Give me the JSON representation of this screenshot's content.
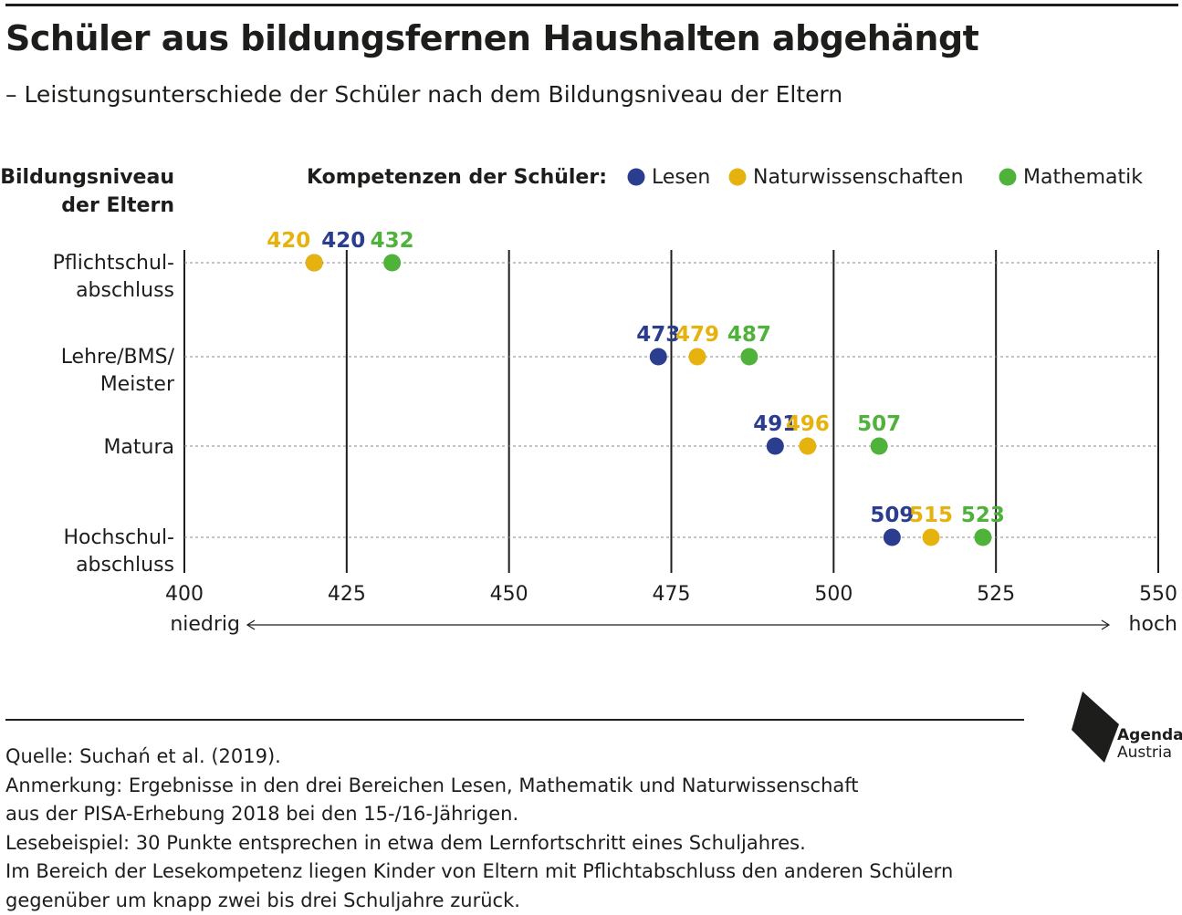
{
  "header": {
    "title": "Schüler aus bildungsfernen Haushalten abgehängt",
    "subtitle": "– Leistungsunterschiede der Schüler nach dem Bildungsniveau der Eltern"
  },
  "chart_data": {
    "type": "scatter",
    "y_axis_title": [
      "Bildungsniveau",
      "der Eltern"
    ],
    "legend_title": "Kompetenzen der Schüler:",
    "legend_position": "top",
    "categories": [
      [
        "Pflichtschul-",
        "abschluss"
      ],
      [
        "Lehre/BMS/",
        "Meister"
      ],
      [
        "Matura"
      ],
      [
        "Hochschul-",
        "abschluss"
      ]
    ],
    "series": [
      {
        "name": "Lesen",
        "color": "#2a3d8f",
        "values": [
          420,
          473,
          491,
          509
        ]
      },
      {
        "name": "Naturwissenschaften",
        "color": "#e6b20e",
        "values": [
          420,
          479,
          496,
          515
        ]
      },
      {
        "name": "Mathematik",
        "color": "#4fb23b",
        "values": [
          432,
          487,
          507,
          523
        ]
      }
    ],
    "data_labels": [
      [
        {
          "text": "420",
          "series": 1,
          "anchor": "end"
        },
        {
          "text": "420",
          "series": 0,
          "anchor": "start"
        },
        {
          "text": "432",
          "series": 2,
          "anchor": "middle"
        }
      ],
      [
        {
          "text": "473",
          "series": 0,
          "anchor": "middle"
        },
        {
          "text": "479",
          "series": 1,
          "anchor": "middle"
        },
        {
          "text": "487",
          "series": 2,
          "anchor": "middle"
        }
      ],
      [
        {
          "text": "491",
          "series": 0,
          "anchor": "middle"
        },
        {
          "text": "496",
          "series": 1,
          "anchor": "middle"
        },
        {
          "text": "507",
          "series": 2,
          "anchor": "middle"
        }
      ],
      [
        {
          "text": "509",
          "series": 0,
          "anchor": "middle"
        },
        {
          "text": "515",
          "series": 1,
          "anchor": "middle"
        },
        {
          "text": "523",
          "series": 2,
          "anchor": "middle"
        }
      ]
    ],
    "xlim": [
      400,
      550
    ],
    "x_ticks": [
      400,
      425,
      450,
      475,
      500,
      525,
      550
    ],
    "x_low_label": "niedrig",
    "x_high_label": "hoch",
    "grid": true
  },
  "footer": {
    "lines": [
      "Quelle: Suchań et al. (2019).",
      "Anmerkung: Ergebnisse in den drei Bereichen Lesen, Mathematik und Naturwissenschaft",
      "aus der PISA-Erhebung 2018 bei den 15-/16-Jährigen.",
      "Lesebeispiel: 30 Punkte entsprechen in etwa dem Lernfortschritt eines Schuljahres.",
      "Im Bereich der Lesekompetenz liegen Kinder von Eltern mit Pflichtabschluss den anderen Schülern",
      "gegenüber um knapp zwei bis drei Schuljahre zurück."
    ],
    "logo": {
      "line1": "Agenda",
      "line2": "Austria"
    }
  }
}
